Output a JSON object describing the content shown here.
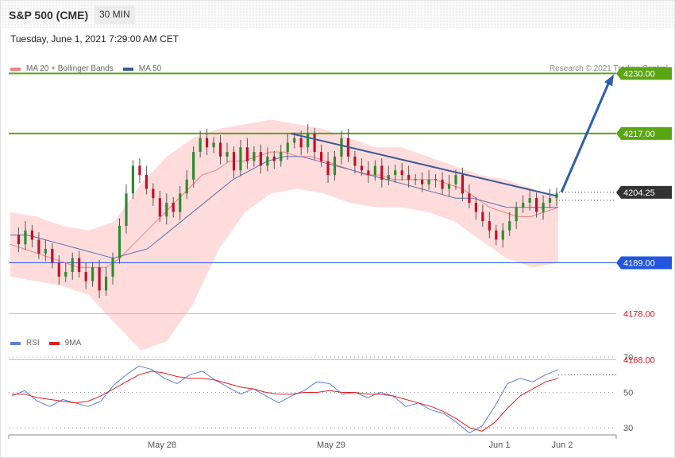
{
  "header": {
    "title": "S&P 500 (CME)",
    "timeframe": "30 MIN"
  },
  "datetime": "Tuesday, June 1, 2021 7:29:00 AM CET",
  "credit": "Research © 2021 Trading Central",
  "legend_main": [
    {
      "label": "MA 20 + Bollinger Bands",
      "color": "#f08080"
    },
    {
      "label": "MA 50",
      "color": "#3a5a99"
    }
  ],
  "legend_rsi": [
    {
      "label": "RSI",
      "color": "#5b7fd9"
    },
    {
      "label": "9MA",
      "color": "#e02020"
    }
  ],
  "colors": {
    "up": "#2e8b2e",
    "down": "#c0102a",
    "bb": "#ffd6d6",
    "ma20": "#f08080",
    "ma50": "#5570b5",
    "resistance": "#5aa514",
    "support_blue": "#2255e0",
    "support_red": "#f4a0a0",
    "current": "#333333",
    "trend": "#3b5a9a",
    "arrow": "#2f5ea8"
  },
  "chart_data": [
    {
      "type": "candlestick",
      "title": "S&P 500 (CME)",
      "timeframe": "30 MIN",
      "ylim": [
        4158,
        4236
      ],
      "x_ticks": [
        "May 28",
        "May 29",
        "Jun 1",
        "Jun 2"
      ],
      "levels": [
        {
          "value": 4230.0,
          "label": "4230.00",
          "kind": "resistance"
        },
        {
          "value": 4217.0,
          "label": "4217.00",
          "kind": "resistance"
        },
        {
          "value": 4204.25,
          "label": "4204.25",
          "kind": "current"
        },
        {
          "value": 4189.0,
          "label": "4189.00",
          "kind": "support_blue"
        },
        {
          "value": 4178.0,
          "label": "4178.00",
          "kind": "support_red"
        },
        {
          "value": 4168.0,
          "label": "4168.00",
          "kind": "support_red"
        }
      ],
      "close_path": [
        4195,
        4193,
        4196,
        4194,
        4191,
        4192,
        4189,
        4186,
        4187,
        4190,
        4187,
        4185,
        4188,
        4183,
        4186,
        4190,
        4197,
        4204,
        4210,
        4208,
        4205,
        4203,
        4199,
        4202,
        4200,
        4204,
        4207,
        4213,
        4216,
        4214,
        4215,
        4212,
        4213,
        4209,
        4214,
        4211,
        4213,
        4210,
        4212,
        4211,
        4213,
        4215,
        4216,
        4214,
        4217,
        4213,
        4211,
        4208,
        4212,
        4216,
        4212,
        4210,
        4209,
        4208,
        4210,
        4207,
        4208,
        4209,
        4208,
        4207,
        4207,
        4206,
        4207,
        4207,
        4205,
        4206,
        4208,
        4204,
        4202,
        4200,
        4198,
        4196,
        4194,
        4196,
        4198,
        4201,
        4202,
        4203,
        4200,
        4202,
        4203,
        4204
      ],
      "ma20_path": [
        4193,
        4192,
        4191,
        4190,
        4189,
        4188,
        4188,
        4188,
        4190,
        4193,
        4196,
        4199,
        4202,
        4205,
        4208,
        4209,
        4211,
        4211,
        4212,
        4213,
        4213,
        4212,
        4212,
        4211,
        4210,
        4209,
        4208,
        4208,
        4207,
        4207,
        4207,
        4207,
        4206,
        4205,
        4203,
        4201,
        4200,
        4199,
        4199,
        4200,
        4201
      ],
      "ma50_path": [
        4195,
        4195,
        4194,
        4193,
        4192,
        4191,
        4190,
        4191,
        4192,
        4195,
        4198,
        4201,
        4204,
        4207,
        4209,
        4211,
        4212,
        4212,
        4211,
        4210,
        4209,
        4208,
        4207,
        4206,
        4205,
        4204,
        4203,
        4203,
        4202,
        4201,
        4201,
        4201,
        4201
      ],
      "bb_upper": [
        4200,
        4199,
        4197,
        4196,
        4198,
        4206,
        4212,
        4216,
        4218,
        4219,
        4220,
        4219,
        4218,
        4216,
        4214,
        4214,
        4212,
        4210,
        4208,
        4207,
        4205,
        4203
      ],
      "bb_lower": [
        4186,
        4185,
        4184,
        4182,
        4176,
        4170,
        4172,
        4180,
        4192,
        4200,
        4204,
        4205,
        4204,
        4202,
        4201,
        4201,
        4200,
        4198,
        4194,
        4190,
        4188,
        4189
      ],
      "trendline": {
        "from": 4217,
        "to": 4203.5
      },
      "target_arrow": {
        "from": 4204.25,
        "to": 4230
      }
    },
    {
      "type": "line",
      "title": "RSI",
      "ylim": [
        20,
        80
      ],
      "y_ticks": [
        70,
        50,
        30
      ],
      "rsi_path": [
        48,
        51,
        45,
        42,
        46,
        44,
        42,
        45,
        54,
        60,
        65,
        63,
        58,
        55,
        60,
        62,
        57,
        53,
        49,
        52,
        48,
        44,
        48,
        51,
        56,
        55,
        49,
        50,
        47,
        50,
        48,
        42,
        44,
        40,
        38,
        33,
        27,
        31,
        42,
        55,
        58,
        56,
        60,
        63
      ],
      "ma9_path": [
        49,
        49,
        47,
        46,
        45,
        44,
        45,
        48,
        52,
        56,
        60,
        62,
        61,
        59,
        58,
        58,
        57,
        55,
        53,
        52,
        50,
        49,
        49,
        50,
        50,
        51,
        50,
        50,
        49,
        49,
        48,
        46,
        44,
        42,
        39,
        35,
        30,
        28,
        33,
        41,
        48,
        52,
        56,
        58
      ]
    }
  ]
}
